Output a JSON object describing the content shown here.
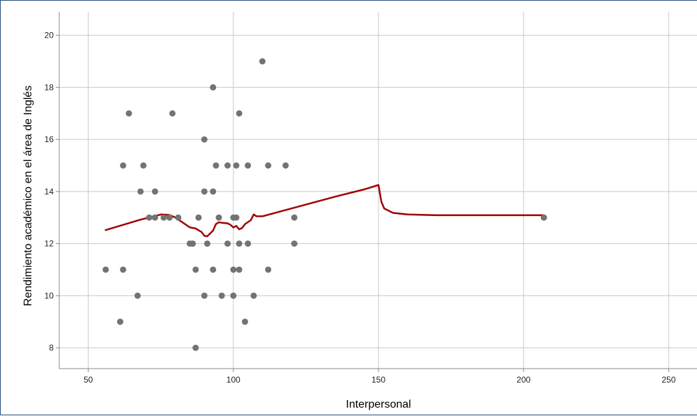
{
  "chart_data": {
    "type": "scatter",
    "title": "",
    "xlabel": "Interpersonal",
    "ylabel": "Rendimiento académico en el área de Inglés",
    "xlim": [
      40,
      260
    ],
    "ylim": [
      7.2,
      20.9
    ],
    "x_ticks": [
      50,
      100,
      150,
      200,
      250
    ],
    "y_ticks": [
      8,
      10,
      12,
      14,
      16,
      18,
      20
    ],
    "grid": true,
    "legend": "none",
    "colors": {
      "points": "#737373",
      "fit_line": "#a00000",
      "grid": "#c8c8c8",
      "axis": "#888888",
      "frame": "#2b4e7d"
    },
    "series": [
      {
        "type": "scatter",
        "points": [
          [
            56,
            11
          ],
          [
            61,
            9
          ],
          [
            62,
            11
          ],
          [
            62,
            15
          ],
          [
            64,
            17
          ],
          [
            67,
            10
          ],
          [
            68,
            14
          ],
          [
            69,
            15
          ],
          [
            71,
            13
          ],
          [
            73,
            14
          ],
          [
            73,
            13
          ],
          [
            76,
            13
          ],
          [
            78,
            13
          ],
          [
            79,
            17
          ],
          [
            81,
            13
          ],
          [
            85,
            12
          ],
          [
            86,
            12
          ],
          [
            87,
            8
          ],
          [
            87,
            11
          ],
          [
            88,
            13
          ],
          [
            90,
            16
          ],
          [
            90,
            14
          ],
          [
            90,
            10
          ],
          [
            91,
            12
          ],
          [
            93,
            18
          ],
          [
            93,
            14
          ],
          [
            93,
            11
          ],
          [
            94,
            15
          ],
          [
            95,
            13
          ],
          [
            96,
            10
          ],
          [
            98,
            15
          ],
          [
            98,
            12
          ],
          [
            100,
            13
          ],
          [
            100,
            11
          ],
          [
            100,
            10
          ],
          [
            101,
            15
          ],
          [
            101,
            13
          ],
          [
            102,
            17
          ],
          [
            102,
            12
          ],
          [
            102,
            11
          ],
          [
            104,
            9
          ],
          [
            105,
            15
          ],
          [
            105,
            12
          ],
          [
            107,
            10
          ],
          [
            110,
            19
          ],
          [
            112,
            15
          ],
          [
            112,
            11
          ],
          [
            118,
            15
          ],
          [
            121,
            13
          ],
          [
            121,
            12
          ],
          [
            207,
            13
          ]
        ]
      },
      {
        "type": "line",
        "points": [
          [
            56,
            12.52
          ],
          [
            62,
            12.72
          ],
          [
            68,
            12.92
          ],
          [
            72,
            13.03
          ],
          [
            75,
            13.12
          ],
          [
            78,
            13.1
          ],
          [
            80,
            13.0
          ],
          [
            82,
            12.85
          ],
          [
            85,
            12.62
          ],
          [
            87,
            12.58
          ],
          [
            89,
            12.45
          ],
          [
            90,
            12.3
          ],
          [
            91,
            12.28
          ],
          [
            93,
            12.5
          ],
          [
            94,
            12.75
          ],
          [
            95,
            12.82
          ],
          [
            96,
            12.8
          ],
          [
            98,
            12.78
          ],
          [
            99,
            12.72
          ],
          [
            100,
            12.62
          ],
          [
            101,
            12.68
          ],
          [
            102,
            12.55
          ],
          [
            103,
            12.6
          ],
          [
            104,
            12.75
          ],
          [
            106,
            12.9
          ],
          [
            107,
            13.12
          ],
          [
            108,
            13.05
          ],
          [
            110,
            13.05
          ],
          [
            115,
            13.2
          ],
          [
            125,
            13.5
          ],
          [
            135,
            13.8
          ],
          [
            145,
            14.08
          ],
          [
            150,
            14.25
          ],
          [
            151,
            13.6
          ],
          [
            152,
            13.35
          ],
          [
            155,
            13.18
          ],
          [
            160,
            13.12
          ],
          [
            170,
            13.09
          ],
          [
            190,
            13.09
          ],
          [
            207,
            13.09
          ]
        ]
      }
    ]
  }
}
